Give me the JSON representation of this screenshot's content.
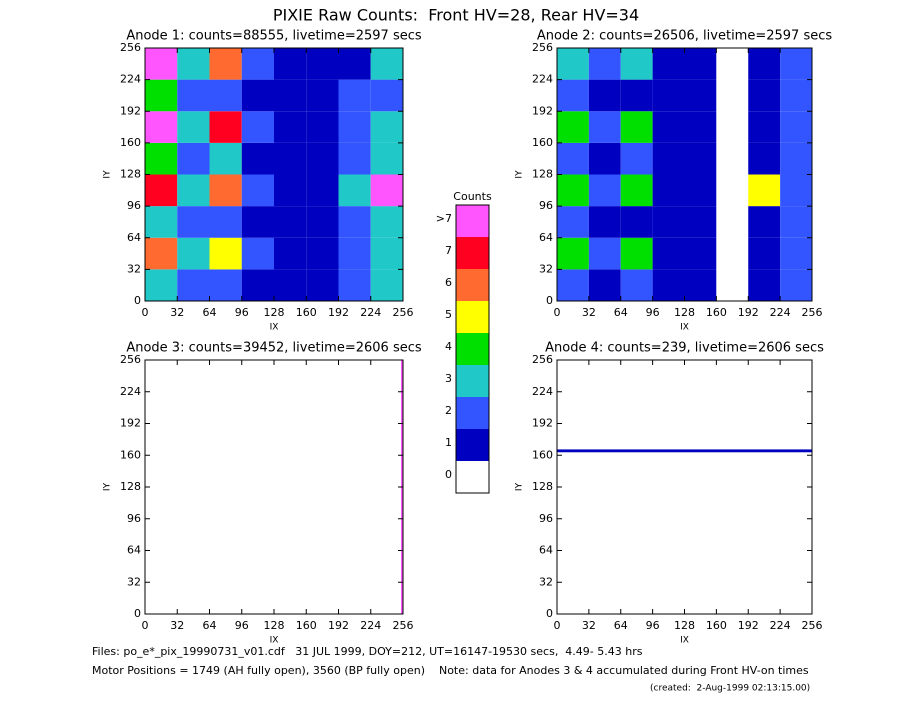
{
  "title": "PIXIE Raw Counts:  Front HV=28, Rear HV=34",
  "chart_data": [
    {
      "type": "heatmap",
      "title": "Anode 1: counts=88555, livetime=2597 secs",
      "xlabel": "IX",
      "ylabel": "IY",
      "xbins": [
        0,
        32,
        64,
        96,
        128,
        160,
        192,
        224,
        256
      ],
      "ybins": [
        0,
        32,
        64,
        96,
        128,
        160,
        192,
        224,
        256
      ],
      "z": [
        [
          3,
          2,
          2,
          1,
          1,
          1,
          2,
          3
        ],
        [
          6,
          3,
          5,
          2,
          1,
          1,
          2,
          3
        ],
        [
          3,
          2,
          2,
          1,
          1,
          1,
          2,
          3
        ],
        [
          7,
          3,
          6,
          2,
          1,
          1,
          3,
          8
        ],
        [
          4,
          2,
          3,
          1,
          1,
          1,
          2,
          3
        ],
        [
          8,
          3,
          7,
          2,
          1,
          1,
          2,
          3
        ],
        [
          4,
          2,
          2,
          1,
          1,
          1,
          2,
          2
        ],
        [
          8,
          3,
          6,
          2,
          1,
          1,
          1,
          3
        ]
      ],
      "xlim": [
        0,
        256
      ],
      "ylim": [
        0,
        256
      ],
      "xticks": [
        0,
        32,
        64,
        96,
        128,
        160,
        192,
        224,
        256
      ],
      "yticks": [
        0,
        32,
        64,
        96,
        128,
        160,
        192,
        224,
        256
      ]
    },
    {
      "type": "heatmap",
      "title": "Anode 2: counts=26506, livetime=2597 secs",
      "xlabel": "IX",
      "ylabel": "IY",
      "xbins": [
        0,
        32,
        64,
        96,
        128,
        160,
        192,
        224,
        256
      ],
      "ybins": [
        0,
        32,
        64,
        96,
        128,
        160,
        192,
        224,
        256
      ],
      "z": [
        [
          2,
          1,
          2,
          1,
          1,
          0,
          1,
          2
        ],
        [
          4,
          2,
          4,
          1,
          1,
          0,
          1,
          2
        ],
        [
          2,
          1,
          1,
          1,
          1,
          0,
          1,
          2
        ],
        [
          4,
          2,
          4,
          1,
          1,
          0,
          5,
          2
        ],
        [
          2,
          1,
          2,
          1,
          1,
          0,
          1,
          2
        ],
        [
          4,
          2,
          4,
          1,
          1,
          0,
          1,
          2
        ],
        [
          2,
          1,
          1,
          1,
          1,
          0,
          1,
          2
        ],
        [
          3,
          2,
          3,
          1,
          1,
          0,
          1,
          2
        ]
      ],
      "xlim": [
        0,
        256
      ],
      "ylim": [
        0,
        256
      ],
      "xticks": [
        0,
        32,
        64,
        96,
        128,
        160,
        192,
        224,
        256
      ],
      "yticks": [
        0,
        32,
        64,
        96,
        128,
        160,
        192,
        224,
        256
      ]
    },
    {
      "type": "heatmap",
      "title": "Anode 3: counts=39452, livetime=2606 secs",
      "xlabel": "IX",
      "ylabel": "IY",
      "xbins": [
        0,
        254,
        256
      ],
      "ybins": [
        0,
        256
      ],
      "z": [
        [
          0,
          8
        ]
      ],
      "xlim": [
        0,
        256
      ],
      "ylim": [
        0,
        256
      ],
      "xticks": [
        0,
        32,
        64,
        96,
        128,
        160,
        192,
        224,
        256
      ],
      "yticks": [
        0,
        32,
        64,
        96,
        128,
        160,
        192,
        224,
        256
      ]
    },
    {
      "type": "heatmap",
      "title": "Anode 4: counts=239, livetime=2606 secs",
      "xlabel": "IX",
      "ylabel": "IY",
      "xbins": [
        0,
        256
      ],
      "ybins": [
        0,
        163,
        166,
        256
      ],
      "z": [
        [
          0
        ],
        [
          1
        ],
        [
          0
        ]
      ],
      "xlim": [
        0,
        256
      ],
      "ylim": [
        0,
        256
      ],
      "xticks": [
        0,
        32,
        64,
        96,
        128,
        160,
        192,
        224,
        256
      ],
      "yticks": [
        0,
        32,
        64,
        96,
        128,
        160,
        192,
        224,
        256
      ]
    }
  ],
  "colorbar": {
    "title": "Counts",
    "labels": [
      "0",
      "1",
      "2",
      "3",
      "4",
      "5",
      "6",
      "7",
      ">7"
    ],
    "colors": [
      "#ffffff",
      "#0000c0",
      "#3355ff",
      "#20c8c8",
      "#00e000",
      "#ffff00",
      "#ff6a30",
      "#ff0020",
      "#ff55ff"
    ]
  },
  "footer": [
    "Files: po_e*_pix_19990731_v01.cdf   31 JUL 1999, DOY=212, UT=16147-19530 secs,  4.49- 5.43 hrs",
    "Motor Positions = 1749 (AH fully open), 3560 (BP fully open)    Note: data for Anodes 3 & 4 accumulated during Front HV-on times",
    "(created:  2-Aug-1999 02:13:15.00)"
  ]
}
